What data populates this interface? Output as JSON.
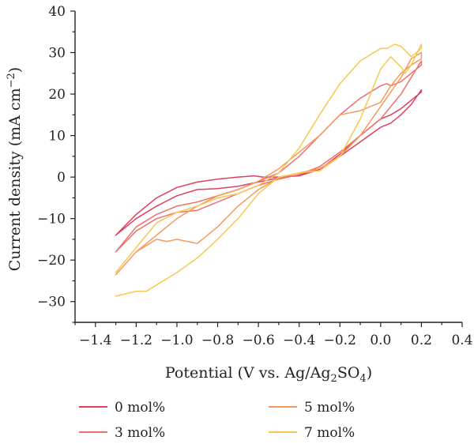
{
  "chart_data": {
    "type": "line",
    "xlabel": "Potential (V vs. Ag/Ag",
    "xlabel_sub1": "2",
    "xlabel_mid": "SO",
    "xlabel_sub2": "4",
    "xlabel_end": ")",
    "ylabel": "Current density (mA cm",
    "ylabel_sup": "−2",
    "ylabel_end": ")",
    "xlim": [
      -1.5,
      0.4
    ],
    "ylim": [
      -35,
      40
    ],
    "x_ticks": [
      -1.4,
      -1.2,
      -1.0,
      -0.8,
      -0.6,
      -0.4,
      -0.2,
      0.0,
      0.2,
      0.4
    ],
    "x_tick_labels": [
      "−1.4",
      "−1.2",
      "−1.0",
      "−0.8",
      "−0.6",
      "−0.4",
      "−0.2",
      "0.0",
      "0.2",
      "0.4"
    ],
    "y_ticks": [
      -30,
      -20,
      -10,
      0,
      10,
      20,
      30,
      40
    ],
    "y_tick_labels": [
      "−30",
      "−20",
      "−10",
      "0",
      "10",
      "20",
      "30",
      "40"
    ],
    "grid": false,
    "legend_position": "bottom",
    "series": [
      {
        "name": "0 mol%",
        "color": "#e0405e",
        "points": [
          [
            -1.3,
            -14
          ],
          [
            -1.2,
            -10
          ],
          [
            -1.1,
            -7
          ],
          [
            -1.0,
            -4.5
          ],
          [
            -0.9,
            -3
          ],
          [
            -0.8,
            -2.8
          ],
          [
            -0.7,
            -2.2
          ],
          [
            -0.6,
            -1.2
          ],
          [
            -0.5,
            -0.2
          ],
          [
            -0.4,
            0.5
          ],
          [
            -0.3,
            2
          ],
          [
            -0.2,
            5
          ],
          [
            -0.1,
            8.5
          ],
          [
            0.0,
            12
          ],
          [
            0.05,
            13
          ],
          [
            0.1,
            15
          ],
          [
            0.15,
            17.5
          ],
          [
            0.2,
            21
          ],
          [
            0.2,
            20.5
          ],
          [
            0.15,
            18.5
          ],
          [
            0.1,
            16.5
          ],
          [
            0.05,
            15
          ],
          [
            0.0,
            14
          ],
          [
            -0.1,
            10
          ],
          [
            -0.2,
            5.5
          ],
          [
            -0.3,
            1.8
          ],
          [
            -0.4,
            0.3
          ],
          [
            -0.5,
            0
          ],
          [
            -0.58,
            0
          ],
          [
            -0.62,
            0.3
          ],
          [
            -0.7,
            0
          ],
          [
            -0.8,
            -0.5
          ],
          [
            -0.9,
            -1.2
          ],
          [
            -1.0,
            -2.5
          ],
          [
            -1.1,
            -5
          ],
          [
            -1.2,
            -9
          ],
          [
            -1.3,
            -14
          ]
        ]
      },
      {
        "name": "3 mol%",
        "color": "#ee6f6b",
        "points": [
          [
            -1.3,
            -18
          ],
          [
            -1.2,
            -13
          ],
          [
            -1.1,
            -10
          ],
          [
            -1.0,
            -8.5
          ],
          [
            -0.9,
            -8
          ],
          [
            -0.8,
            -6
          ],
          [
            -0.7,
            -4
          ],
          [
            -0.6,
            -2
          ],
          [
            -0.5,
            -0.5
          ],
          [
            -0.4,
            0.6
          ],
          [
            -0.3,
            2.5
          ],
          [
            -0.2,
            6
          ],
          [
            -0.1,
            10
          ],
          [
            0.0,
            14
          ],
          [
            0.05,
            17
          ],
          [
            0.1,
            20
          ],
          [
            0.2,
            28
          ],
          [
            0.2,
            27
          ],
          [
            0.1,
            23
          ],
          [
            0.05,
            22
          ],
          [
            0.03,
            22.5
          ],
          [
            0.0,
            22
          ],
          [
            -0.1,
            19
          ],
          [
            -0.2,
            15
          ],
          [
            -0.3,
            10
          ],
          [
            -0.4,
            5
          ],
          [
            -0.5,
            1
          ],
          [
            -0.6,
            -1
          ],
          [
            -0.7,
            -3
          ],
          [
            -0.8,
            -4.5
          ],
          [
            -0.9,
            -6
          ],
          [
            -1.0,
            -7
          ],
          [
            -1.1,
            -9
          ],
          [
            -1.2,
            -12
          ],
          [
            -1.3,
            -18
          ]
        ]
      },
      {
        "name": "5 mol%",
        "color": "#f49a5c",
        "points": [
          [
            -1.3,
            -23.5
          ],
          [
            -1.2,
            -18
          ],
          [
            -1.1,
            -15
          ],
          [
            -1.05,
            -15.5
          ],
          [
            -1.0,
            -15
          ],
          [
            -0.9,
            -16
          ],
          [
            -0.8,
            -12
          ],
          [
            -0.7,
            -7
          ],
          [
            -0.6,
            -3
          ],
          [
            -0.5,
            -0.2
          ],
          [
            -0.4,
            1
          ],
          [
            -0.3,
            2
          ],
          [
            -0.2,
            5
          ],
          [
            -0.1,
            10
          ],
          [
            0.0,
            17
          ],
          [
            0.1,
            24
          ],
          [
            0.15,
            28.5
          ],
          [
            0.2,
            30
          ],
          [
            0.2,
            28.5
          ],
          [
            0.15,
            27
          ],
          [
            0.1,
            25
          ],
          [
            0.05,
            22
          ],
          [
            0.0,
            18
          ],
          [
            -0.1,
            16
          ],
          [
            -0.2,
            15
          ],
          [
            -0.3,
            10
          ],
          [
            -0.4,
            6
          ],
          [
            -0.5,
            2
          ],
          [
            -0.6,
            -1
          ],
          [
            -0.7,
            -3
          ],
          [
            -0.8,
            -4.5
          ],
          [
            -0.9,
            -7
          ],
          [
            -1.0,
            -10
          ],
          [
            -1.1,
            -14
          ],
          [
            -1.2,
            -18
          ],
          [
            -1.3,
            -23.5
          ]
        ]
      },
      {
        "name": "7 mol%",
        "color": "#f9c74f",
        "points": [
          [
            -1.3,
            -28.7
          ],
          [
            -1.2,
            -27.5
          ],
          [
            -1.15,
            -27.5
          ],
          [
            -1.1,
            -26
          ],
          [
            -1.0,
            -23
          ],
          [
            -0.9,
            -19.5
          ],
          [
            -0.8,
            -15
          ],
          [
            -0.7,
            -10
          ],
          [
            -0.6,
            -4
          ],
          [
            -0.5,
            0
          ],
          [
            -0.4,
            1
          ],
          [
            -0.3,
            1.5
          ],
          [
            -0.2,
            5
          ],
          [
            -0.1,
            14
          ],
          [
            0.0,
            26
          ],
          [
            0.05,
            29
          ],
          [
            0.1,
            26.5
          ],
          [
            0.12,
            25
          ],
          [
            0.15,
            27
          ],
          [
            0.2,
            32
          ],
          [
            0.2,
            31
          ],
          [
            0.15,
            29
          ],
          [
            0.1,
            31.5
          ],
          [
            0.07,
            32
          ],
          [
            0.03,
            31
          ],
          [
            0.0,
            31
          ],
          [
            -0.1,
            28
          ],
          [
            -0.2,
            22.5
          ],
          [
            -0.3,
            15
          ],
          [
            -0.4,
            7
          ],
          [
            -0.5,
            1
          ],
          [
            -0.6,
            -2
          ],
          [
            -0.7,
            -4
          ],
          [
            -0.8,
            -5
          ],
          [
            -0.9,
            -7
          ],
          [
            -1.0,
            -8.5
          ],
          [
            -1.1,
            -11
          ],
          [
            -1.2,
            -17
          ],
          [
            -1.3,
            -23
          ]
        ]
      }
    ]
  }
}
